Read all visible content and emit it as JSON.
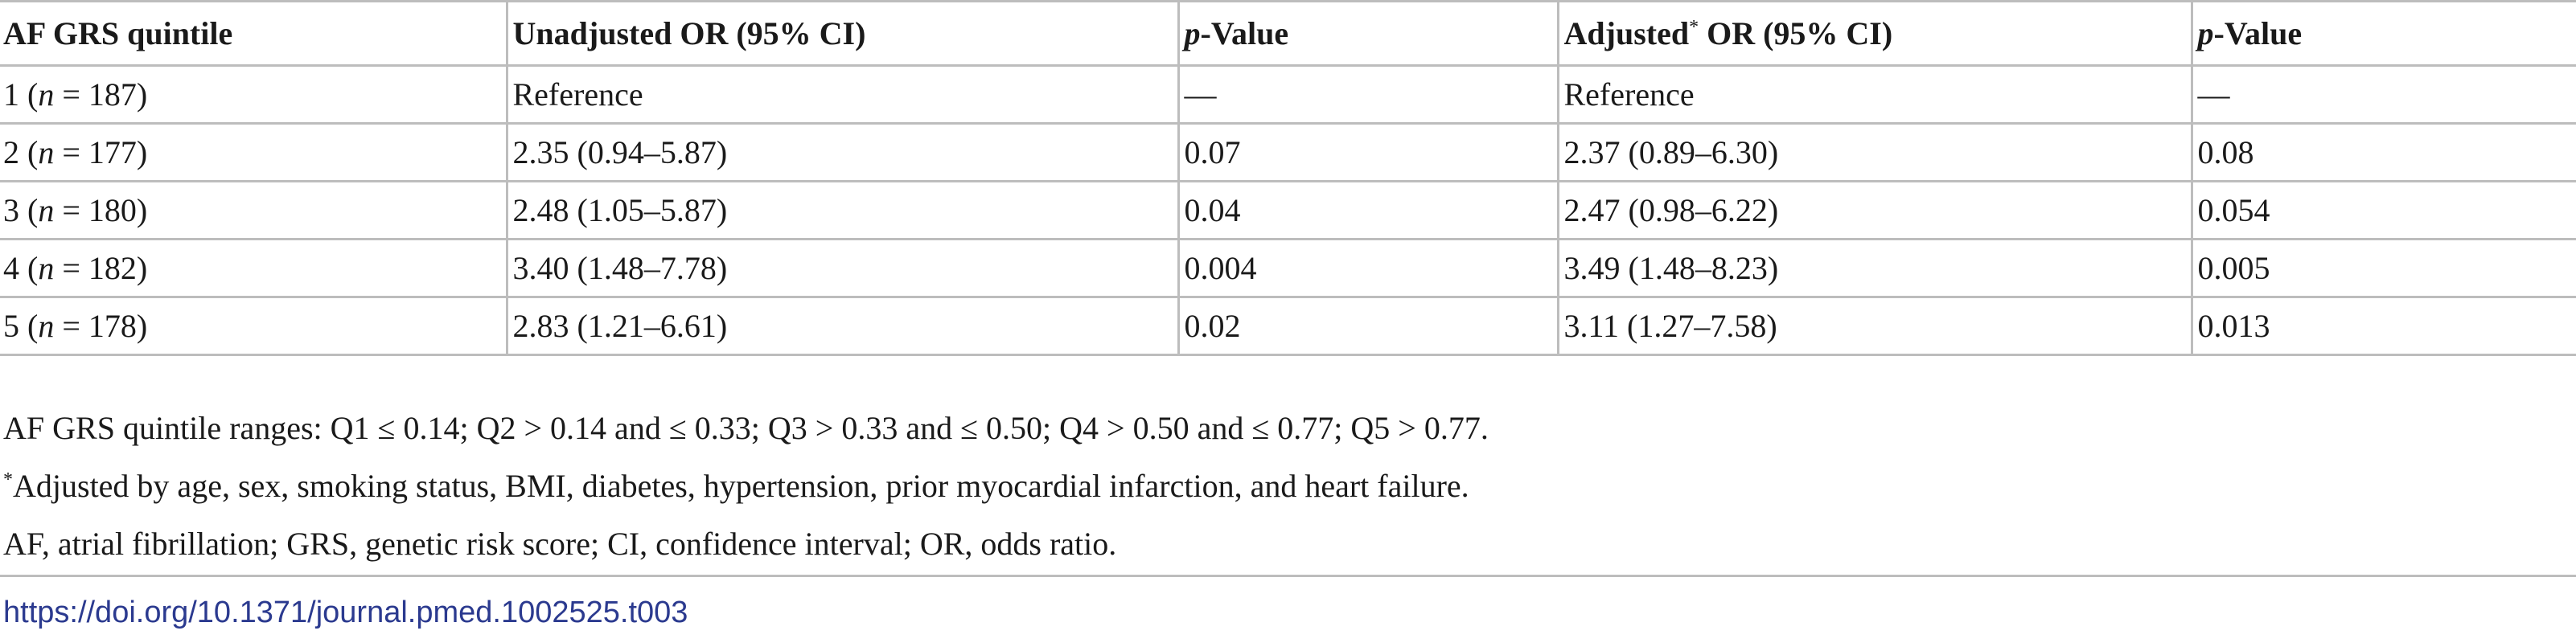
{
  "table": {
    "headers": {
      "col1": "AF GRS quintile",
      "col2": "Unadjusted OR (95% CI)",
      "col3_p": "p",
      "col3_rest": "-Value",
      "col4_pre": "Adjusted",
      "col4_sup": "*",
      "col4_post": " OR (95% CI)",
      "col5_p": "p",
      "col5_rest": "-Value"
    },
    "rows": [
      {
        "quintile": "1",
        "n_label": "n",
        "n_rest": " = 187)",
        "unadj": "Reference",
        "p1": "—",
        "adj": "Reference",
        "p2": "—"
      },
      {
        "quintile": "2",
        "n_label": "n",
        "n_rest": " = 177)",
        "unadj": "2.35 (0.94–5.87)",
        "p1": "0.07",
        "adj": "2.37 (0.89–6.30)",
        "p2": "0.08"
      },
      {
        "quintile": "3",
        "n_label": "n",
        "n_rest": " = 180)",
        "unadj": "2.48 (1.05–5.87)",
        "p1": "0.04",
        "adj": "2.47 (0.98–6.22)",
        "p2": "0.054"
      },
      {
        "quintile": "4",
        "n_label": "n",
        "n_rest": " = 182)",
        "unadj": "3.40 (1.48–7.78)",
        "p1": "0.004",
        "adj": "3.49 (1.48–8.23)",
        "p2": "0.005"
      },
      {
        "quintile": "5",
        "n_label": "n",
        "n_rest": " = 178)",
        "unadj": "2.83 (1.21–6.61)",
        "p1": "0.02",
        "adj": "3.11 (1.27–7.58)",
        "p2": "0.013"
      }
    ]
  },
  "footnotes": {
    "ranges": "AF GRS quintile ranges: Q1 ≤ 0.14; Q2 > 0.14 and ≤ 0.33; Q3 > 0.33 and ≤ 0.50; Q4 > 0.50 and ≤ 0.77; Q5 > 0.77.",
    "adjusted_mark": "*",
    "adjusted": "Adjusted by age, sex, smoking status, BMI, diabetes, hypertension, prior myocardial infarction, and heart failure.",
    "abbreviations": "AF, atrial fibrillation; GRS, genetic risk score; CI, confidence interval; OR, odds ratio."
  },
  "doi": "https://doi.org/10.1371/journal.pmed.1002525.t003",
  "colors": {
    "rule": "#bdbdbd",
    "text": "#1a1a1a",
    "link": "#2b3a8f"
  }
}
